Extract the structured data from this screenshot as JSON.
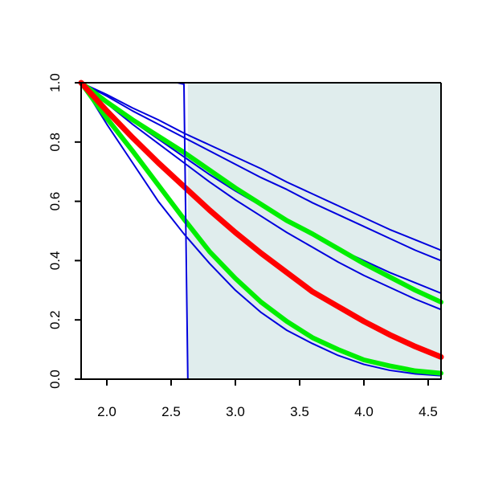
{
  "chart_data": {
    "type": "line",
    "xlim": [
      1.8,
      4.6
    ],
    "ylim": [
      0.0,
      1.0
    ],
    "x_ticks": [
      "2.0",
      "2.5",
      "3.0",
      "3.5",
      "4.0",
      "4.5"
    ],
    "y_ticks": [
      "0.0",
      "0.2",
      "0.4",
      "0.6",
      "0.8",
      "1.0"
    ],
    "grid": false,
    "legend": "none",
    "shaded_region": {
      "x_from": 2.63,
      "x_to": 4.6,
      "y_from": 0.0,
      "y_to": 1.0,
      "color": "#e0eded"
    },
    "series": [
      {
        "color": "#0000dd",
        "width": 2,
        "x": [
          1.8,
          2.0,
          2.2,
          2.4,
          2.6,
          2.8,
          3.0,
          3.2,
          3.4,
          3.6,
          3.8,
          4.0,
          4.2,
          4.4,
          4.6
        ],
        "y": [
          1.0,
          0.96,
          0.915,
          0.875,
          0.83,
          0.79,
          0.75,
          0.71,
          0.665,
          0.625,
          0.585,
          0.545,
          0.505,
          0.47,
          0.435
        ]
      },
      {
        "color": "#0000dd",
        "width": 2,
        "x": [
          1.8,
          2.0,
          2.2,
          2.4,
          2.6,
          2.8,
          3.0,
          3.2,
          3.4,
          3.6,
          3.8,
          4.0,
          4.2,
          4.4,
          4.6
        ],
        "y": [
          1.0,
          0.955,
          0.905,
          0.86,
          0.815,
          0.77,
          0.725,
          0.68,
          0.64,
          0.595,
          0.555,
          0.515,
          0.475,
          0.435,
          0.4
        ]
      },
      {
        "color": "#0000dd",
        "width": 2,
        "x": [
          1.8,
          2.0,
          2.2,
          2.4,
          2.6,
          2.8,
          3.0,
          3.2,
          3.4,
          3.6,
          3.8,
          4.0,
          4.2,
          4.4,
          4.6
        ],
        "y": [
          1.0,
          0.935,
          0.87,
          0.81,
          0.75,
          0.69,
          0.635,
          0.585,
          0.535,
          0.485,
          0.44,
          0.4,
          0.36,
          0.325,
          0.29
        ]
      },
      {
        "color": "#0000dd",
        "width": 2,
        "x": [
          1.8,
          2.0,
          2.2,
          2.4,
          2.6,
          2.8,
          3.0,
          3.2,
          3.4,
          3.6,
          3.8,
          4.0,
          4.2,
          4.4,
          4.6
        ],
        "y": [
          1.0,
          0.93,
          0.86,
          0.795,
          0.73,
          0.665,
          0.605,
          0.55,
          0.495,
          0.445,
          0.395,
          0.35,
          0.31,
          0.27,
          0.235
        ]
      },
      {
        "color": "#0000dd",
        "width": 2,
        "x": [
          1.8,
          2.0,
          2.2,
          2.4,
          2.6,
          2.8,
          3.0,
          3.2,
          3.4,
          3.6,
          3.8,
          4.0,
          4.2,
          4.4,
          4.6
        ],
        "y": [
          1.0,
          0.86,
          0.73,
          0.6,
          0.49,
          0.39,
          0.3,
          0.225,
          0.165,
          0.12,
          0.08,
          0.05,
          0.03,
          0.018,
          0.012
        ]
      },
      {
        "color": "#00ee00",
        "width": 6,
        "x": [
          1.8,
          2.0,
          2.2,
          2.4,
          2.6,
          2.8,
          3.0,
          3.2,
          3.4,
          3.6,
          3.8,
          4.0,
          4.2,
          4.4,
          4.6
        ],
        "y": [
          1.0,
          0.935,
          0.875,
          0.82,
          0.765,
          0.705,
          0.645,
          0.59,
          0.535,
          0.49,
          0.44,
          0.39,
          0.345,
          0.3,
          0.26
        ]
      },
      {
        "color": "#00ee00",
        "width": 6,
        "x": [
          1.8,
          2.0,
          2.2,
          2.4,
          2.6,
          2.8,
          3.0,
          3.2,
          3.4,
          3.6,
          3.8,
          4.0,
          4.2,
          4.4,
          4.6
        ],
        "y": [
          1.0,
          0.88,
          0.77,
          0.655,
          0.54,
          0.43,
          0.34,
          0.26,
          0.195,
          0.14,
          0.1,
          0.065,
          0.045,
          0.028,
          0.02
        ]
      },
      {
        "color": "#ff0000",
        "width": 7,
        "x": [
          1.8,
          2.0,
          2.2,
          2.4,
          2.6,
          2.8,
          3.0,
          3.2,
          3.4,
          3.6,
          3.8,
          4.0,
          4.2,
          4.4,
          4.6
        ],
        "y": [
          1.0,
          0.905,
          0.815,
          0.73,
          0.65,
          0.57,
          0.495,
          0.425,
          0.36,
          0.295,
          0.245,
          0.195,
          0.15,
          0.11,
          0.075
        ]
      },
      {
        "color": "#0000dd",
        "width": 2,
        "x": [
          1.8,
          2.55,
          2.6,
          2.63,
          4.6
        ],
        "y": [
          1.0,
          1.0,
          0.995,
          0.0,
          0.0
        ]
      }
    ]
  }
}
